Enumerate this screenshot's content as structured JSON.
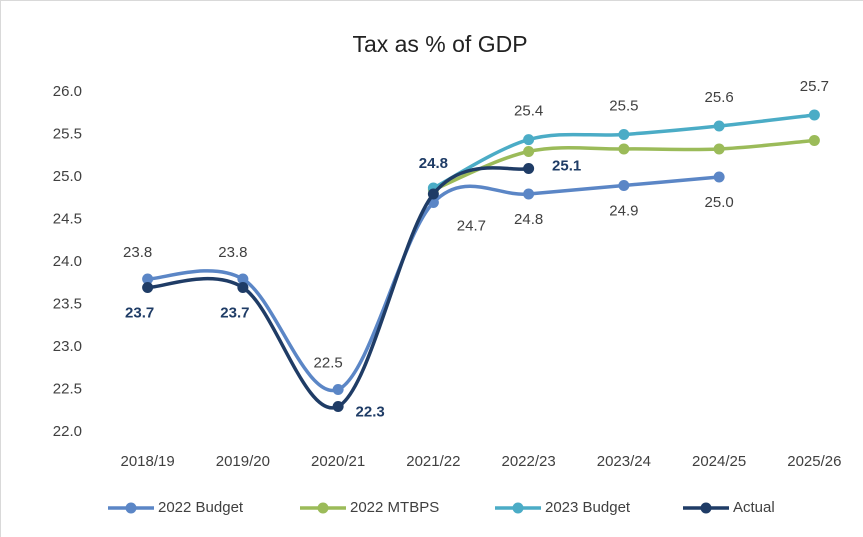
{
  "chart_data": {
    "type": "line",
    "title": "Tax as % of GDP",
    "categories": [
      "2018/19",
      "2019/20",
      "2020/21",
      "2021/22",
      "2022/23",
      "2023/24",
      "2024/25",
      "2025/26"
    ],
    "ylim": [
      22,
      26
    ],
    "yticks": [
      {
        "value": 22,
        "label": "22.0"
      },
      22.5,
      {
        "value": 23,
        "label": "23.0"
      },
      23.5,
      {
        "value": 24,
        "label": "24.0"
      },
      24.5,
      {
        "value": 25,
        "label": "25.0"
      },
      25.5,
      {
        "value": 26,
        "label": "26.0"
      }
    ],
    "grid": false,
    "legend": "bottom",
    "series": [
      {
        "name": "2022 Budget",
        "color": "#5b86c6",
        "values": [
          23.8,
          23.8,
          22.5,
          24.7,
          24.8,
          24.9,
          25.0,
          null
        ],
        "value_labels": [
          "23.8",
          "23.8",
          "22.5",
          "24.7",
          "24.8",
          "24.9",
          "25.0",
          null
        ]
      },
      {
        "name": "2022 MTBPS",
        "color": "#9bbb59",
        "values": [
          null,
          null,
          null,
          24.85,
          25.3,
          25.33,
          25.33,
          25.43
        ]
      },
      {
        "name": "2023 Budget",
        "color": "#4bacc6",
        "values": [
          null,
          null,
          null,
          24.87,
          25.44,
          25.5,
          25.6,
          25.73
        ],
        "value_labels": [
          null,
          null,
          null,
          null,
          "25.4",
          "25.5",
          "25.6",
          "25.7"
        ]
      },
      {
        "name": "Actual",
        "color": "#1f3c66",
        "values": [
          23.7,
          23.7,
          22.3,
          24.8,
          25.1,
          null,
          null,
          null
        ],
        "value_labels": [
          "23.7",
          "23.7",
          "22.3",
          "24.8",
          "25.1",
          null,
          null,
          null
        ]
      }
    ]
  }
}
